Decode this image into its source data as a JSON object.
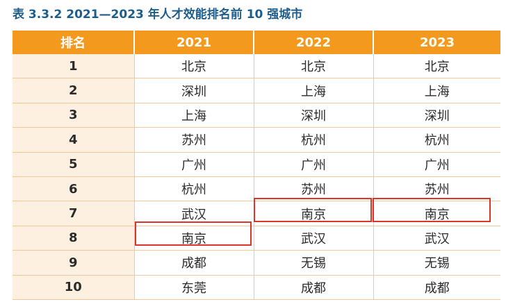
{
  "title": "表 3.3.2 2021—2023 年人才效能排名前 10 强城市",
  "table": {
    "headers": [
      "排名",
      "2021",
      "2022",
      "2023"
    ],
    "rows": [
      [
        "1",
        "北京",
        "北京",
        "北京"
      ],
      [
        "2",
        "深圳",
        "上海",
        "上海"
      ],
      [
        "3",
        "上海",
        "深圳",
        "深圳"
      ],
      [
        "4",
        "苏州",
        "杭州",
        "杭州"
      ],
      [
        "5",
        "广州",
        "广州",
        "广州"
      ],
      [
        "6",
        "杭州",
        "苏州",
        "苏州"
      ],
      [
        "7",
        "武汉",
        "南京",
        "南京"
      ],
      [
        "8",
        "南京",
        "武汉",
        "武汉"
      ],
      [
        "9",
        "成都",
        "无锡",
        "无锡"
      ],
      [
        "10",
        "东莞",
        "成都",
        "成都"
      ]
    ],
    "highlighted_cells": [
      {
        "rank": "8",
        "year": "2021",
        "city": "南京"
      },
      {
        "rank": "7",
        "year": "2022",
        "city": "南京"
      },
      {
        "rank": "7",
        "year": "2023",
        "city": "南京"
      }
    ],
    "colors": {
      "header_bg": "#f39a1e",
      "rank_col_bg": "#fdf0e0",
      "highlight_border": "#d9352b",
      "title_color": "#1d5d8c"
    }
  }
}
